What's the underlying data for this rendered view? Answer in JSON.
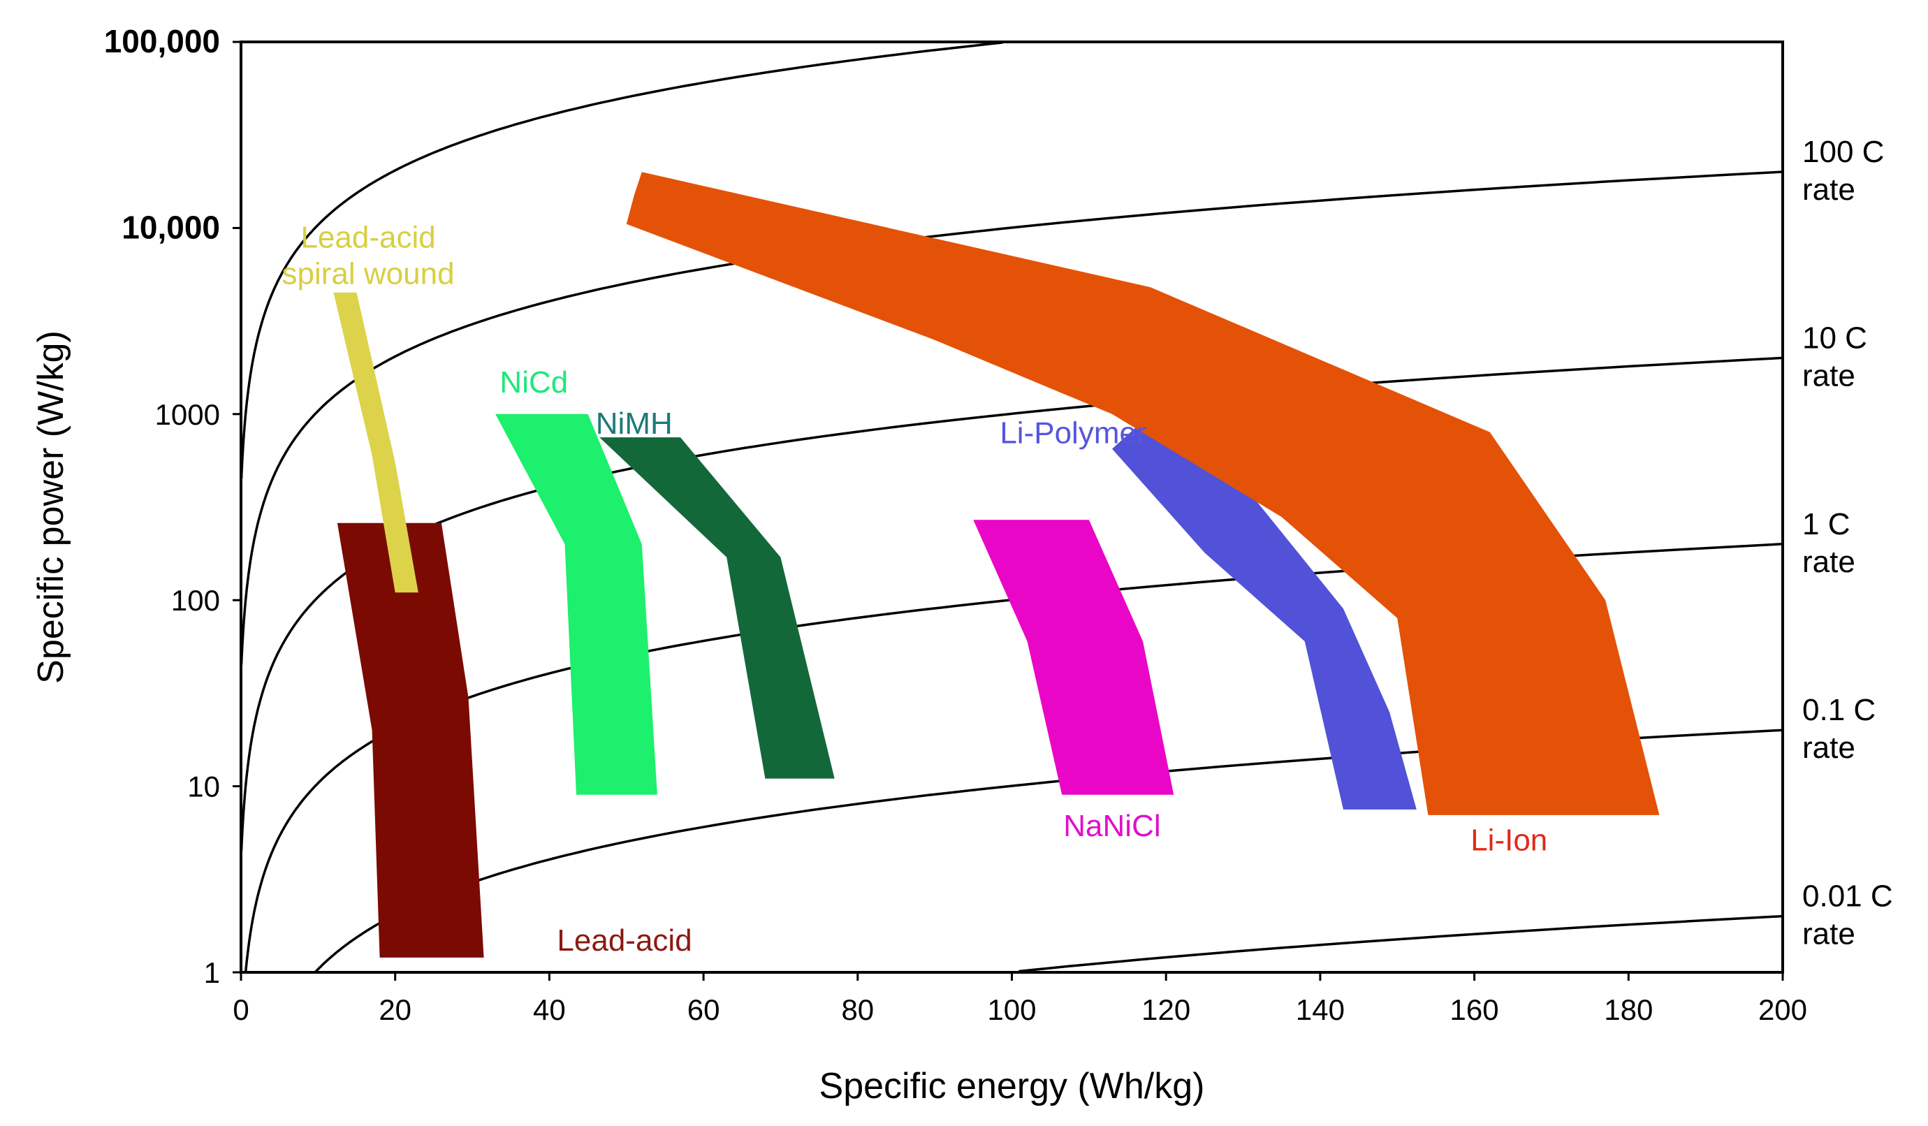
{
  "chart_data": {
    "type": "area",
    "title": "",
    "xlabel": "Specific energy (Wh/kg)",
    "ylabel": "Specific power (W/kg)",
    "xlim": [
      0,
      200
    ],
    "ylim": [
      1,
      100000
    ],
    "yscale": "log",
    "grid": false,
    "x_ticks": [
      "0",
      "20",
      "40",
      "60",
      "80",
      "100",
      "120",
      "140",
      "160",
      "180",
      "200"
    ],
    "y_ticks": [
      {
        "label": "1",
        "value": 1,
        "bold": false
      },
      {
        "label": "10",
        "value": 10,
        "bold": false
      },
      {
        "label": "100",
        "value": 100,
        "bold": false
      },
      {
        "label": "1000",
        "value": 1000,
        "bold": false
      },
      {
        "label": "10,000",
        "value": 10000,
        "bold": true
      },
      {
        "label": "100,000",
        "value": 100000,
        "bold": true
      }
    ],
    "c_rate_lines": [
      {
        "rate": 1000,
        "label": []
      },
      {
        "rate": 100,
        "label": [
          "100 C",
          "rate"
        ]
      },
      {
        "rate": 10,
        "label": [
          "10 C",
          "rate"
        ]
      },
      {
        "rate": 1,
        "label": [
          "1 C",
          "rate"
        ]
      },
      {
        "rate": 0.1,
        "label": [
          "0.1 C",
          "rate"
        ]
      },
      {
        "rate": 0.01,
        "label": [
          "0.01 C",
          "rate"
        ]
      }
    ],
    "series": [
      {
        "name": "Lead-acid",
        "label_lines": [
          "Lead-acid"
        ],
        "color": "#7b0a02",
        "label_color": "#8b1a12",
        "polygon": [
          [
            12.5,
            260
          ],
          [
            26,
            260
          ],
          [
            29.5,
            30
          ],
          [
            31.5,
            1.2
          ],
          [
            18,
            1.2
          ],
          [
            17,
            20
          ]
        ]
      },
      {
        "name": "Lead-acid spiral wound",
        "label_lines": [
          "Lead-acid",
          "spiral wound"
        ],
        "color": "#dcd34a",
        "label_color": "#d8cf42",
        "polygon": [
          [
            12,
            4500
          ],
          [
            15,
            4500
          ],
          [
            20,
            550
          ],
          [
            23,
            110
          ],
          [
            20,
            110
          ],
          [
            17,
            600
          ]
        ]
      },
      {
        "name": "NiCd",
        "label_lines": [
          "NiCd"
        ],
        "color": "#1cf06c",
        "label_color": "#1de879",
        "polygon": [
          [
            33,
            1000
          ],
          [
            45,
            1000
          ],
          [
            52,
            200
          ],
          [
            54,
            9
          ],
          [
            43.5,
            9
          ],
          [
            42,
            200
          ]
        ]
      },
      {
        "name": "NiMH",
        "label_lines": [
          "NiMH"
        ],
        "color": "#13683a",
        "label_color": "#1d7a7a",
        "polygon": [
          [
            46.5,
            750
          ],
          [
            57,
            750
          ],
          [
            70,
            170
          ],
          [
            77,
            11
          ],
          [
            68,
            11
          ],
          [
            63,
            170
          ]
        ]
      },
      {
        "name": "NaNiCl",
        "label_lines": [
          "NaNiCl"
        ],
        "color": "#ea06c6",
        "label_color": "#e010c8",
        "polygon": [
          [
            95,
            270
          ],
          [
            110,
            270
          ],
          [
            117,
            60
          ],
          [
            121,
            9
          ],
          [
            106.5,
            9
          ],
          [
            102,
            60
          ]
        ]
      },
      {
        "name": "Li-Polymer",
        "label_lines": [
          "Li-Polymer"
        ],
        "color": "#5152d8",
        "label_color": "#5656dd",
        "polygon": [
          [
            113,
            650
          ],
          [
            118,
            1000
          ],
          [
            124,
            850
          ],
          [
            143,
            90
          ],
          [
            149,
            25
          ],
          [
            152.5,
            7.5
          ],
          [
            143,
            7.5
          ],
          [
            138,
            60
          ],
          [
            125,
            180
          ]
        ]
      },
      {
        "name": "Li-Ion",
        "label_lines": [
          "Li-Ion"
        ],
        "color": "#e45207",
        "label_color": "#e02a1a",
        "polygon": [
          [
            51,
            15000
          ],
          [
            52,
            20000
          ],
          [
            118,
            4800
          ],
          [
            162,
            800
          ],
          [
            177,
            100
          ],
          [
            184,
            7
          ],
          [
            154,
            7
          ],
          [
            150,
            80
          ],
          [
            135,
            280
          ],
          [
            113,
            1000
          ],
          [
            90,
            2500
          ],
          [
            50,
            10500
          ]
        ]
      }
    ]
  }
}
